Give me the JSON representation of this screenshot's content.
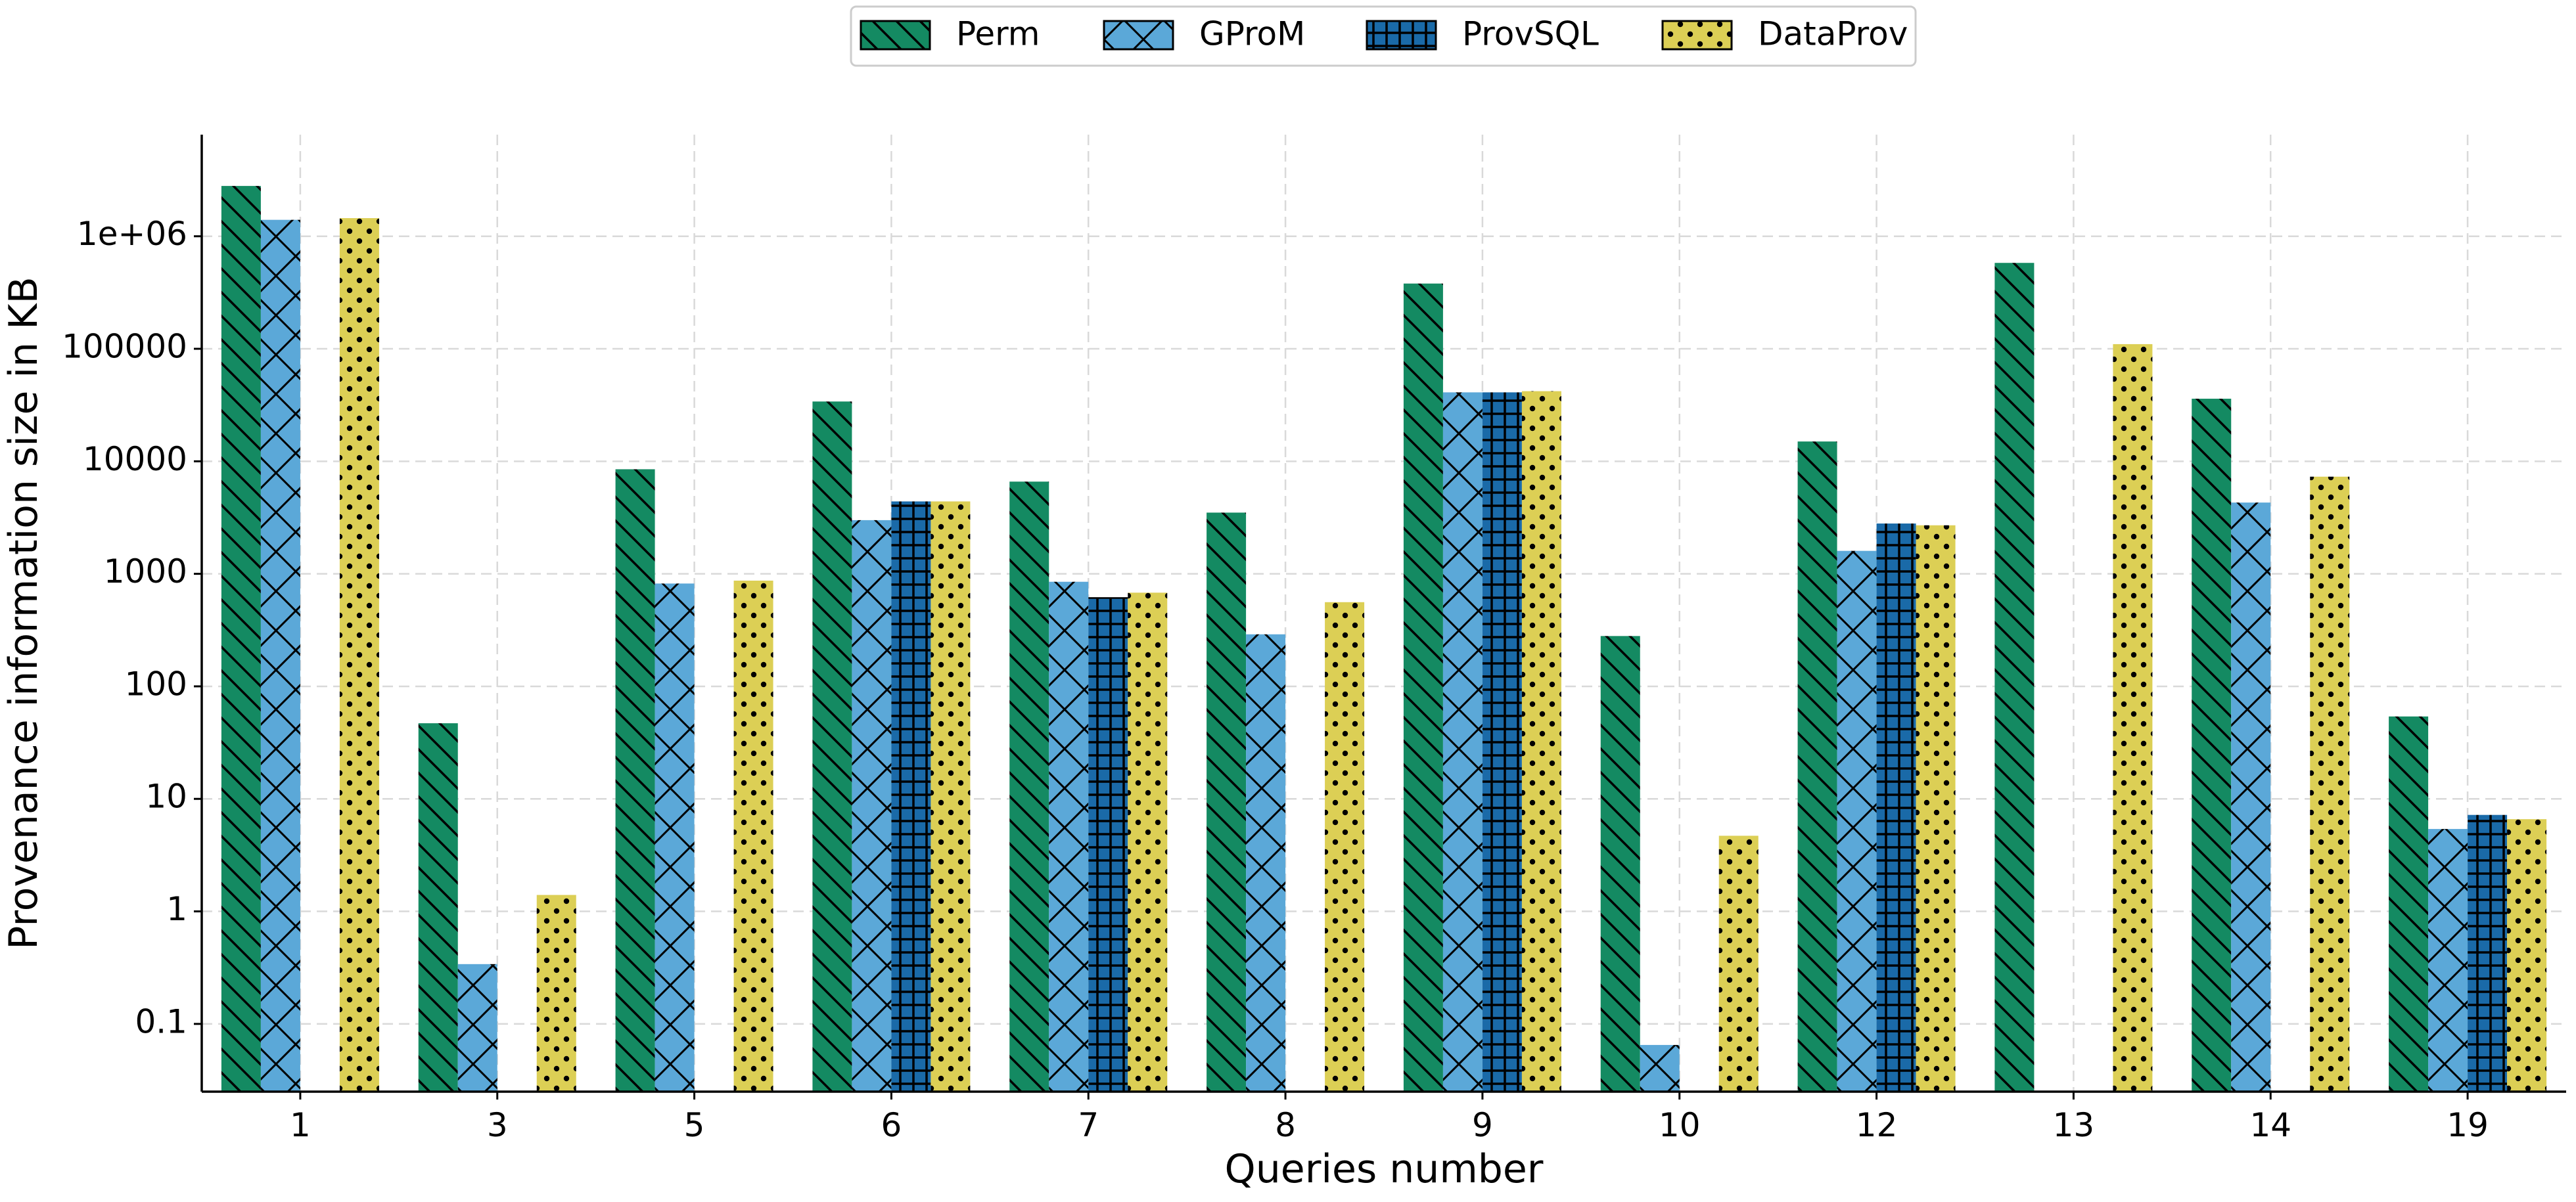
{
  "chart_data": {
    "type": "bar",
    "scale": "log",
    "xlabel": "Queries number",
    "ylabel": "Provenance information size in KB",
    "categories": [
      "1",
      "3",
      "5",
      "6",
      "7",
      "8",
      "9",
      "10",
      "12",
      "13",
      "14",
      "19"
    ],
    "yticks": [
      0.1,
      1,
      10,
      100,
      1000,
      10000,
      100000,
      1000000
    ],
    "ytick_labels": [
      "0.1",
      "1",
      "10",
      "100",
      "1000",
      "10000",
      "100000",
      "1e+06"
    ],
    "ylim": [
      0.025,
      8000000
    ],
    "grid": true,
    "legend_position": "top-center",
    "series": [
      {
        "name": "Perm",
        "color": "#148a62",
        "pattern": "diagonal-back",
        "values": [
          2800000,
          47,
          8500,
          34000,
          6600,
          3500,
          380000,
          280,
          15000,
          580000,
          36000,
          54
        ]
      },
      {
        "name": "GProM",
        "color": "#5ba8d8",
        "pattern": "cross-hatch",
        "values": [
          1400000,
          0.34,
          820,
          3000,
          850,
          290,
          41000,
          0.065,
          1600,
          null,
          4300,
          5.4
        ]
      },
      {
        "name": "ProvSQL",
        "color": "#1a6aa8",
        "pattern": "grid",
        "values": [
          null,
          null,
          null,
          4400,
          620,
          null,
          41000,
          null,
          2800,
          null,
          null,
          7.2
        ]
      },
      {
        "name": "DataProv",
        "color": "#dccf55",
        "pattern": "dots",
        "values": [
          1450000,
          1.4,
          870,
          4400,
          680,
          560,
          42000,
          4.7,
          2700,
          110000,
          7300,
          6.6
        ]
      }
    ]
  }
}
